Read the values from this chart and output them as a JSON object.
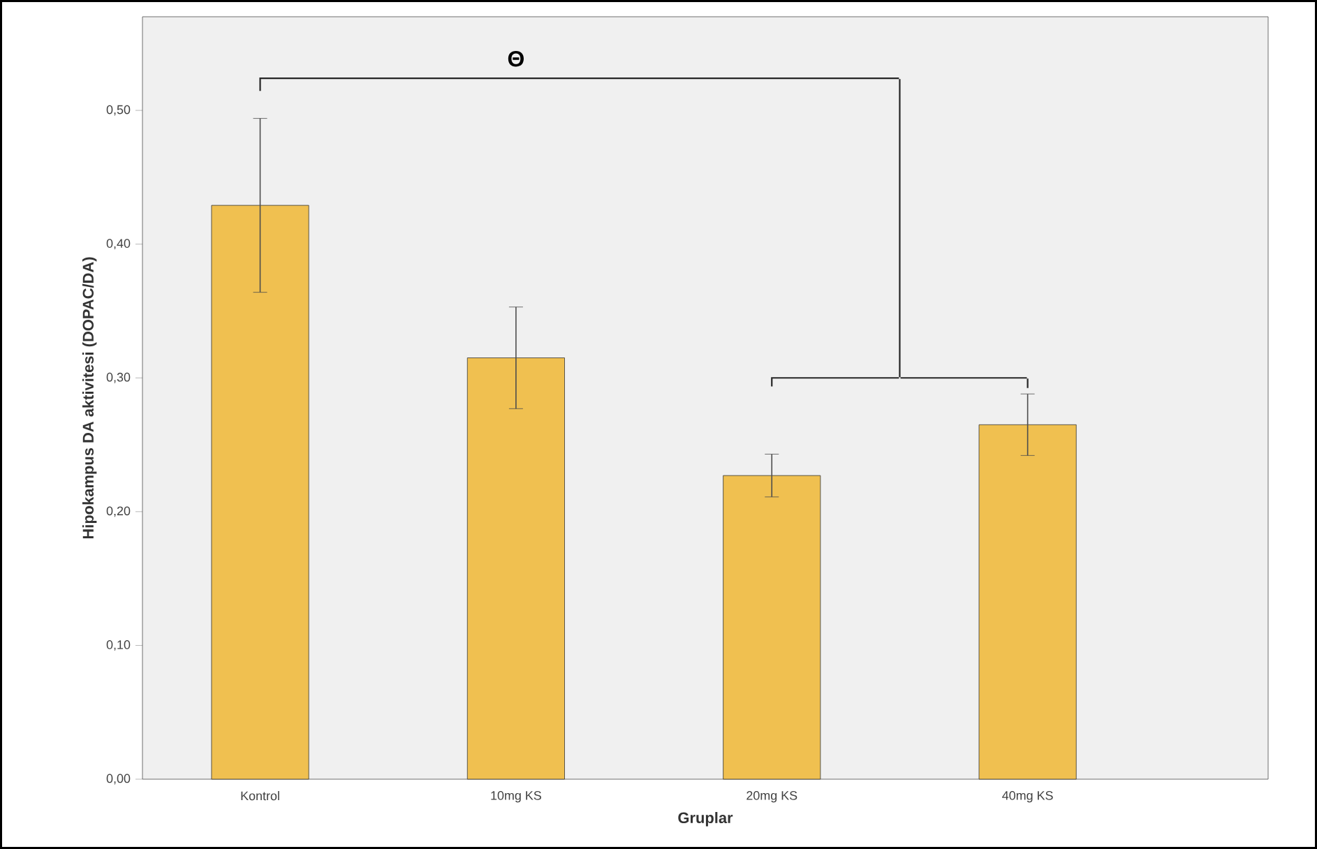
{
  "chart_data": {
    "type": "bar",
    "xlabel": "Gruplar",
    "ylabel": "Hipokampus DA aktivitesi (DOPAC/DA)",
    "categories": [
      "Kontrol",
      "10mg KS",
      "20mg KS",
      "40mg KS"
    ],
    "values": [
      0.429,
      0.315,
      0.227,
      0.265
    ],
    "errors": [
      0.065,
      0.038,
      0.016,
      0.023
    ],
    "color": "#f0c050",
    "ylim": [
      0,
      0.57
    ],
    "yticks": [
      {
        "value": 0,
        "label": "0,00"
      },
      {
        "value": 0.1,
        "label": "0,10"
      },
      {
        "value": 0.2,
        "label": "0,20"
      },
      {
        "value": 0.3,
        "label": "0,30"
      },
      {
        "value": 0.4,
        "label": "0,40"
      },
      {
        "value": 0.5,
        "label": "0,50"
      }
    ],
    "annotations": [
      "Θ"
    ]
  }
}
